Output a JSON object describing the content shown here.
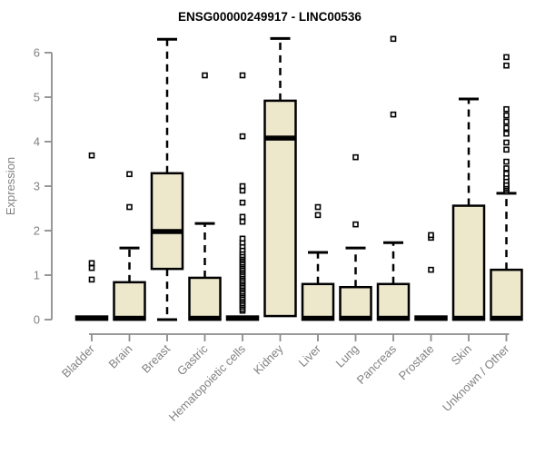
{
  "figure": {
    "title": "ENSG00000249917 - LINC00536"
  },
  "chart_data": {
    "type": "boxplot",
    "title": "ENSG00000249917 - LINC00536",
    "xlabel": "",
    "ylabel": "Expression",
    "ylim": [
      0,
      6.4
    ],
    "yticks": [
      0,
      1,
      2,
      3,
      4,
      5,
      6
    ],
    "grid": false,
    "legend": "none",
    "categories": [
      "Bladder",
      "Brain",
      "Breast",
      "Gastric",
      "Hematopoietic cells",
      "Kidney",
      "Liver",
      "Lung",
      "Pancreas",
      "Prostate",
      "Skin",
      "Unknown / Other"
    ],
    "boxes": [
      {
        "category": "Bladder",
        "q1": 0,
        "median": 0.03,
        "q3": 0.07,
        "whisker_low": 0,
        "whisker_high": 0.07,
        "outliers": [
          0.9,
          1.16,
          1.27,
          3.69
        ]
      },
      {
        "category": "Brain",
        "q1": 0,
        "median": 0.03,
        "q3": 0.84,
        "whisker_low": 0,
        "whisker_high": 1.61,
        "outliers": [
          2.53,
          3.27
        ]
      },
      {
        "category": "Breast",
        "q1": 1.14,
        "median": 1.98,
        "q3": 3.29,
        "whisker_low": 0,
        "whisker_high": 6.3,
        "outliers": []
      },
      {
        "category": "Gastric",
        "q1": 0,
        "median": 0.03,
        "q3": 0.94,
        "whisker_low": 0,
        "whisker_high": 2.16,
        "outliers": [
          5.49
        ]
      },
      {
        "category": "Hematopoietic cells",
        "q1": 0,
        "median": 0.03,
        "q3": 0.07,
        "whisker_low": 0,
        "whisker_high": 0.07,
        "outliers": [
          0.2,
          0.24,
          0.29,
          0.33,
          0.37,
          0.42,
          0.46,
          0.5,
          0.55,
          0.59,
          0.63,
          0.68,
          0.72,
          0.76,
          0.81,
          0.85,
          0.89,
          0.94,
          0.98,
          1.02,
          1.07,
          1.11,
          1.15,
          1.2,
          1.24,
          1.28,
          1.33,
          1.37,
          1.41,
          1.45,
          1.51,
          1.57,
          1.65,
          1.73,
          1.82,
          2.2,
          2.31,
          2.63,
          2.9,
          3.0,
          4.12,
          5.49
        ]
      },
      {
        "category": "Kidney",
        "q1": 0.08,
        "median": 4.08,
        "q3": 4.92,
        "whisker_low": 0.08,
        "whisker_high": 6.32,
        "outliers": []
      },
      {
        "category": "Liver",
        "q1": 0,
        "median": 0.03,
        "q3": 0.8,
        "whisker_low": 0,
        "whisker_high": 1.51,
        "outliers": [
          2.35,
          2.53
        ]
      },
      {
        "category": "Lung",
        "q1": 0,
        "median": 0.03,
        "q3": 0.73,
        "whisker_low": 0,
        "whisker_high": 1.61,
        "outliers": [
          2.14,
          3.65
        ]
      },
      {
        "category": "Pancreas",
        "q1": 0,
        "median": 0.03,
        "q3": 0.8,
        "whisker_low": 0,
        "whisker_high": 1.73,
        "outliers": [
          4.61,
          6.31
        ]
      },
      {
        "category": "Prostate",
        "q1": 0,
        "median": 0.03,
        "q3": 0.07,
        "whisker_low": 0,
        "whisker_high": 0.07,
        "outliers": [
          1.12,
          1.84,
          1.9
        ]
      },
      {
        "category": "Skin",
        "q1": 0,
        "median": 0.03,
        "q3": 2.56,
        "whisker_low": 0,
        "whisker_high": 4.96,
        "outliers": []
      },
      {
        "category": "Unknown / Other",
        "q1": 0,
        "median": 0.03,
        "q3": 1.12,
        "whisker_low": 0,
        "whisker_high": 2.84,
        "outliers": [
          2.88,
          2.92,
          2.96,
          3.0,
          3.04,
          3.12,
          3.2,
          3.28,
          3.4,
          3.55,
          3.82,
          3.98,
          4.18,
          4.31,
          4.45,
          4.59,
          4.73,
          5.71,
          5.9
        ]
      }
    ]
  },
  "style": {
    "background": "#FFFFFF",
    "box_fill": "#EDE7CC",
    "box_stroke": "#000000",
    "median_color": "#000000",
    "whisker_color": "#000000",
    "outlier_fill": "#FFFFFF",
    "outlier_stroke": "#000000",
    "axis_color": "#8C8C8C",
    "tick_label_color": "#828282",
    "title_color": "#000000"
  }
}
